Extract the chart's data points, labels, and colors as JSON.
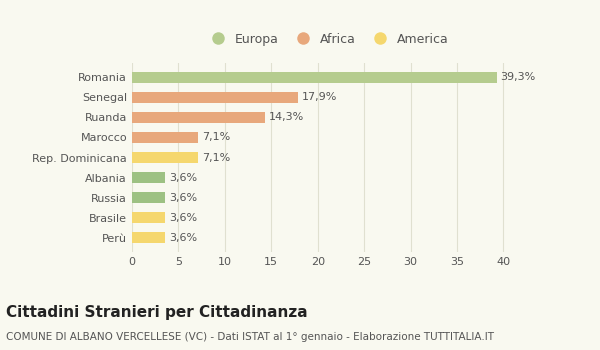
{
  "categories": [
    "Perù",
    "Brasile",
    "Russia",
    "Albania",
    "Rep. Dominicana",
    "Marocco",
    "Ruanda",
    "Senegal",
    "Romania"
  ],
  "values": [
    3.6,
    3.6,
    3.6,
    3.6,
    7.1,
    7.1,
    14.3,
    17.9,
    39.3
  ],
  "labels": [
    "3,6%",
    "3,6%",
    "3,6%",
    "3,6%",
    "7,1%",
    "7,1%",
    "14,3%",
    "17,9%",
    "39,3%"
  ],
  "bar_colors": [
    "#f5d76e",
    "#f5d76e",
    "#9dc183",
    "#9dc183",
    "#f5d76e",
    "#e8a87c",
    "#e8a87c",
    "#e8a87c",
    "#b5cc8e"
  ],
  "legend_items": [
    {
      "label": "Europa",
      "color": "#b5cc8e"
    },
    {
      "label": "Africa",
      "color": "#e8a87c"
    },
    {
      "label": "America",
      "color": "#f5d76e"
    }
  ],
  "title": "Cittadini Stranieri per Cittadinanza",
  "subtitle": "COMUNE DI ALBANO VERCELLESE (VC) - Dati ISTAT al 1° gennaio - Elaborazione TUTTITALIA.IT",
  "xlim": [
    0,
    42
  ],
  "xticks": [
    0,
    5,
    10,
    15,
    20,
    25,
    30,
    35,
    40
  ],
  "background_color": "#f9f9f0",
  "grid_color": "#e0e0d0",
  "bar_height": 0.55,
  "title_fontsize": 11,
  "subtitle_fontsize": 7.5,
  "label_fontsize": 8,
  "tick_fontsize": 8,
  "legend_fontsize": 9,
  "text_color": "#555555",
  "title_color": "#222222"
}
